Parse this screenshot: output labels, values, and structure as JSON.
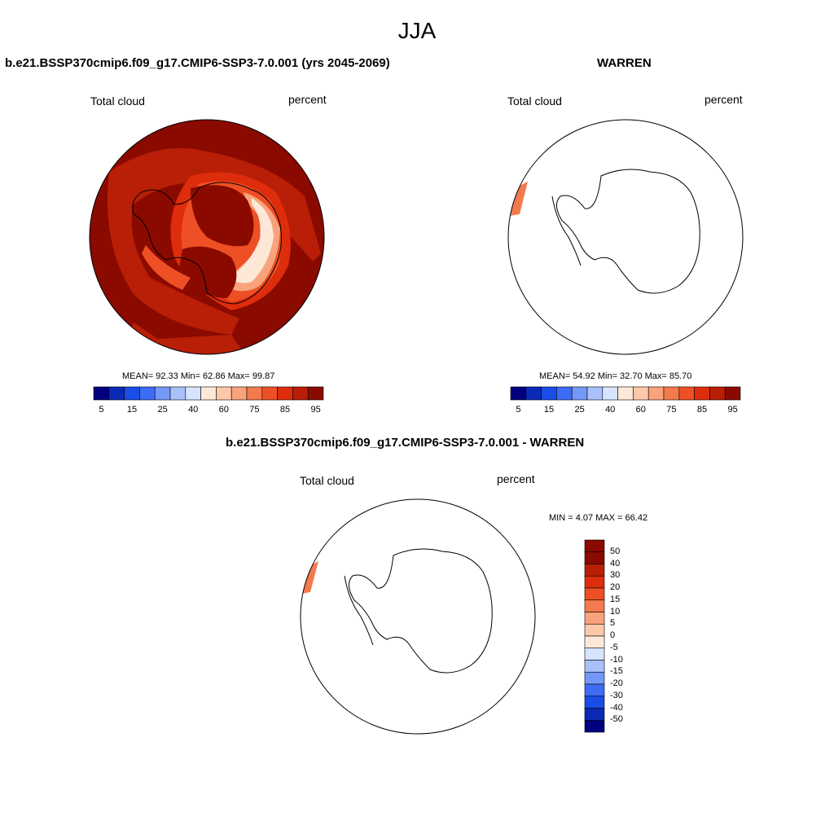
{
  "season": "JJA",
  "colors": [
    "#00007f",
    "#0a2ab6",
    "#1a4de8",
    "#3d6cf5",
    "#7398f7",
    "#a9c1fa",
    "#d6e4fd",
    "#fde8d8",
    "#fcc8a8",
    "#f9a37c",
    "#f47a4d",
    "#ee4f24",
    "#de2d0c",
    "#b81f06",
    "#8a0a00"
  ],
  "panels": {
    "test": {
      "title": "b.e21.BSSP370cmip6.f09_g17.CMIP6-SSP3-7.0.001 (yrs 2045-2069)",
      "left_label": "Total cloud",
      "right_label": "percent",
      "stats": "MEAN=  92.33  Min=  62.86  Max=  99.87",
      "colorbar_labels": [
        "5",
        "15",
        "25",
        "40",
        "60",
        "75",
        "85",
        "95"
      ]
    },
    "obs": {
      "title": "WARREN",
      "left_label": "Total cloud",
      "right_label": "percent",
      "stats": "MEAN=  54.92  Min=  32.70  Max=  85.70",
      "colorbar_labels": [
        "5",
        "15",
        "25",
        "40",
        "60",
        "75",
        "85",
        "95"
      ]
    },
    "diff": {
      "title": "b.e21.BSSP370cmip6.f09_g17.CMIP6-SSP3-7.0.001 - WARREN",
      "left_label": "Total cloud",
      "right_label": "percent",
      "stats": "MIN =   4.07 MAX =  66.42",
      "colorbar_labels": [
        "50",
        "40",
        "30",
        "20",
        "15",
        "10",
        "5",
        "0",
        "-5",
        "-10",
        "-15",
        "-20",
        "-30",
        "-40",
        "-50"
      ]
    }
  }
}
